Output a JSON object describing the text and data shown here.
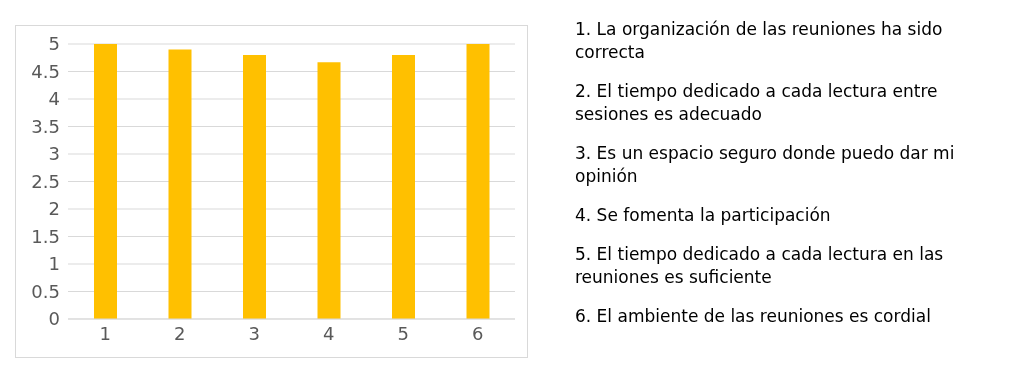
{
  "chart_data": {
    "type": "bar",
    "categories": [
      "1",
      "2",
      "3",
      "4",
      "5",
      "6"
    ],
    "values": [
      5,
      4.9,
      4.8,
      4.67,
      4.8,
      5
    ],
    "color": "#ffc000",
    "ylim": [
      0,
      5
    ],
    "yticks": [
      0,
      0.5,
      1,
      1.5,
      2,
      2.5,
      3,
      3.5,
      4,
      4.5,
      5
    ],
    "grid": "y",
    "annotations": [
      "1. La organización de las reuniones ha sido correcta",
      "2. El tiempo dedicado a cada lectura entre sesiones es adecuado",
      "3. Es un espacio seguro donde puedo dar mi opinión",
      "4. Se fomenta la participación",
      "5. El tiempo dedicado a cada lectura en las reuniones es suficiente",
      "6. El ambiente de las reuniones es cordial"
    ]
  }
}
